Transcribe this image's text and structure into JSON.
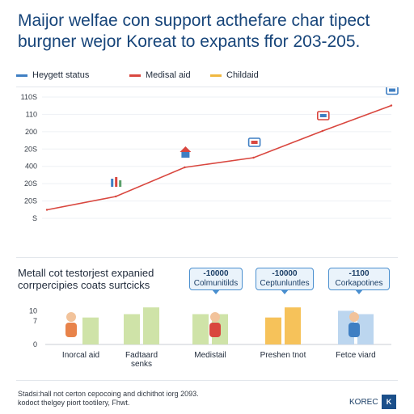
{
  "header": {
    "title_line1": "Maijor welfae con support acthefare char tipect",
    "title_line2": "burgner wejor Koreat to expants ffor 203-205."
  },
  "legend": [
    {
      "label": "Heygett status",
      "color": "#3f7fc3"
    },
    {
      "label": "Medisal aid",
      "color": "#d9473f"
    },
    {
      "label": "Childaid",
      "color": "#f0b840"
    }
  ],
  "colors": {
    "accent": "#17457a",
    "line": "#d9473f",
    "bar_green": "#cfe3a8",
    "bar_orange": "#f6c25a",
    "bar_blue": "#bcd6ef"
  },
  "chart_data": [
    {
      "type": "line",
      "title": "",
      "y_tick_labels": [
        "110S",
        "110",
        "200",
        "20S",
        "400",
        "20S",
        "20S",
        "S"
      ],
      "series": [
        {
          "values": [
            0.07,
            0.18,
            0.42,
            0.5,
            0.72,
            0.93
          ]
        }
      ],
      "icons": [
        "family-icon",
        "house-icon",
        "window-icon",
        "gift-icon",
        "card-icon"
      ],
      "grid": true
    },
    {
      "type": "bar",
      "subtitle_line1": "Metall cot testorjest expanied",
      "subtitle_line2": "corrpercipies coats surtcicks",
      "y_tick_labels": [
        "10",
        "7",
        "0"
      ],
      "ylim": [
        0,
        12
      ],
      "categories": [
        "Inorcal aid",
        "Fadtaard\nsenks",
        "Medistail",
        "Preshen tnot",
        "Fetce viard"
      ],
      "values": [
        [
          0,
          8
        ],
        [
          9,
          11
        ],
        [
          9,
          9
        ],
        [
          8,
          11
        ],
        [
          10,
          9
        ]
      ],
      "callouts": [
        {
          "category": 2,
          "line1": "-10000",
          "line2": "Colmunitilds"
        },
        {
          "category": 3,
          "line1": "-10000",
          "line2": "Ceptunluntles"
        },
        {
          "category": 4,
          "line1": "-1100",
          "line2": "Corkapotines"
        }
      ]
    }
  ],
  "footer": {
    "note_line1": "Stadsi:hall not certon cepocoing and dichithot iorg 2093.",
    "note_line2": "kodoct thelgey piort tootilery, Fhwt.",
    "logo_word": "KOREC",
    "logo_badge": "K"
  }
}
